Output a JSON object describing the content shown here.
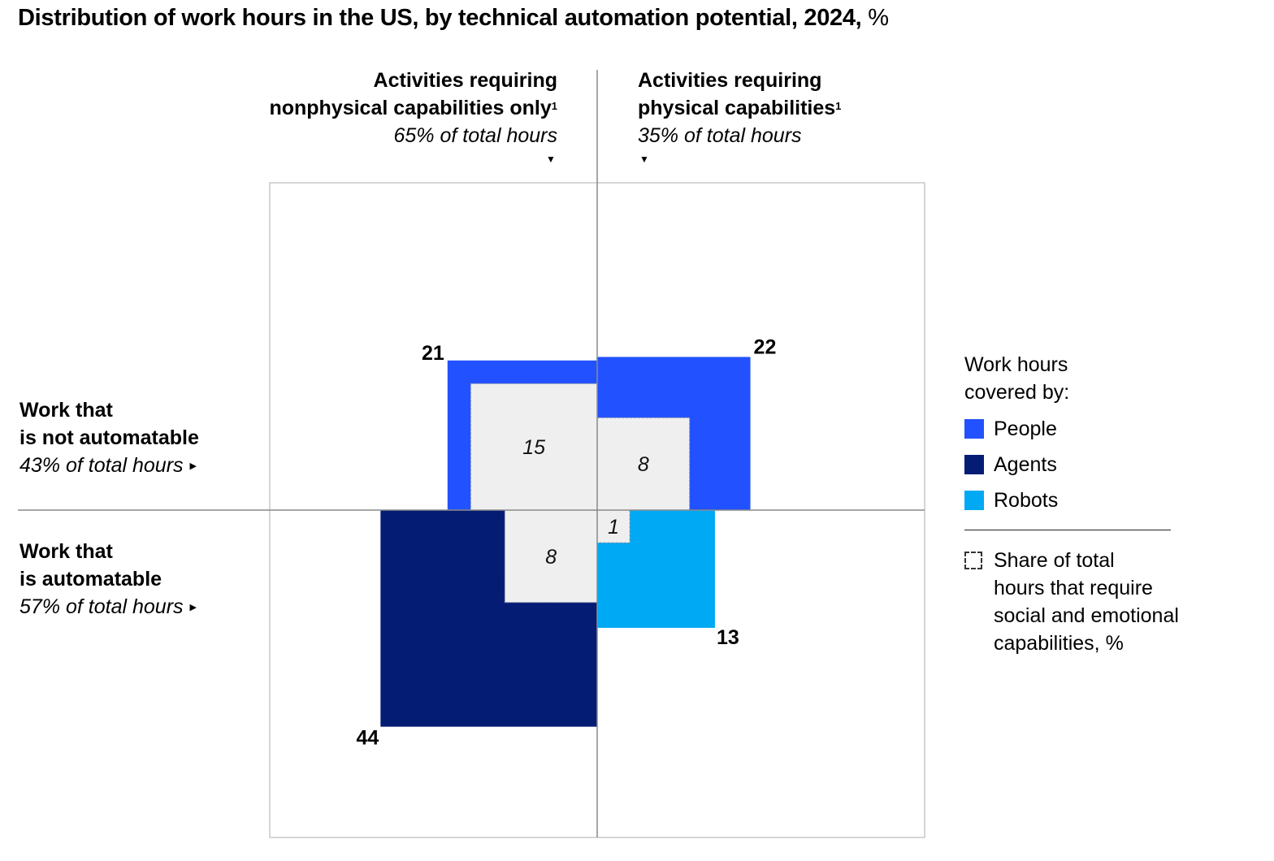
{
  "title": {
    "main": "Distribution of work hours in the US, by technical automation potential, 2024,",
    "unit": " %"
  },
  "columns": {
    "left": {
      "line1": "Activities requiring",
      "line2": "nonphysical capabilities only",
      "footnote": "1",
      "share": "65% of total hours",
      "marker": "▼"
    },
    "right": {
      "line1": "Activities requiring",
      "line2": "physical capabilities",
      "footnote": "1",
      "share": "35% of total hours",
      "marker": "▼"
    }
  },
  "rows": {
    "top": {
      "line1": "Work that",
      "line2": "is not automatable",
      "share": "43% of total hours",
      "marker": "▶"
    },
    "bottom": {
      "line1": "Work that",
      "line2": "is automatable",
      "share": "57% of total hours",
      "marker": "▶"
    }
  },
  "legend": {
    "title_line1": "Work hours",
    "title_line2": "covered by:",
    "items": [
      {
        "label": "People",
        "color": "#2251ff"
      },
      {
        "label": "Agents",
        "color": "#051c75"
      },
      {
        "label": "Robots",
        "color": "#00a9f4"
      }
    ],
    "share_label_lines": [
      "Share of total",
      "hours that require",
      "social and emotional",
      "capabilities, %"
    ]
  },
  "chart_data": {
    "type": "proportional-area-quadrant",
    "title": "Distribution of work hours in the US, by technical automation potential, 2024, %",
    "x_axis": {
      "left": "Activities requiring nonphysical capabilities only (65% of total hours)",
      "right": "Activities requiring physical capabilities (35% of total hours)"
    },
    "y_axis": {
      "top": "Work that is not automatable (43% of total hours)",
      "bottom": "Work that is automatable (57% of total hours)"
    },
    "colors": {
      "People": "#2251ff",
      "Agents": "#051c75",
      "Robots": "#00a9f4",
      "social_emotional_fill": "#efefef"
    },
    "quadrants": [
      {
        "id": "top-left",
        "covered_by": "People",
        "value": 21,
        "social_emotional": 15
      },
      {
        "id": "top-right",
        "covered_by": "People",
        "value": 22,
        "social_emotional": 8
      },
      {
        "id": "bottom-left",
        "covered_by": "Agents",
        "value": 44,
        "social_emotional": 8
      },
      {
        "id": "bottom-right",
        "covered_by": "Robots",
        "value": 13,
        "social_emotional": 1
      }
    ]
  }
}
